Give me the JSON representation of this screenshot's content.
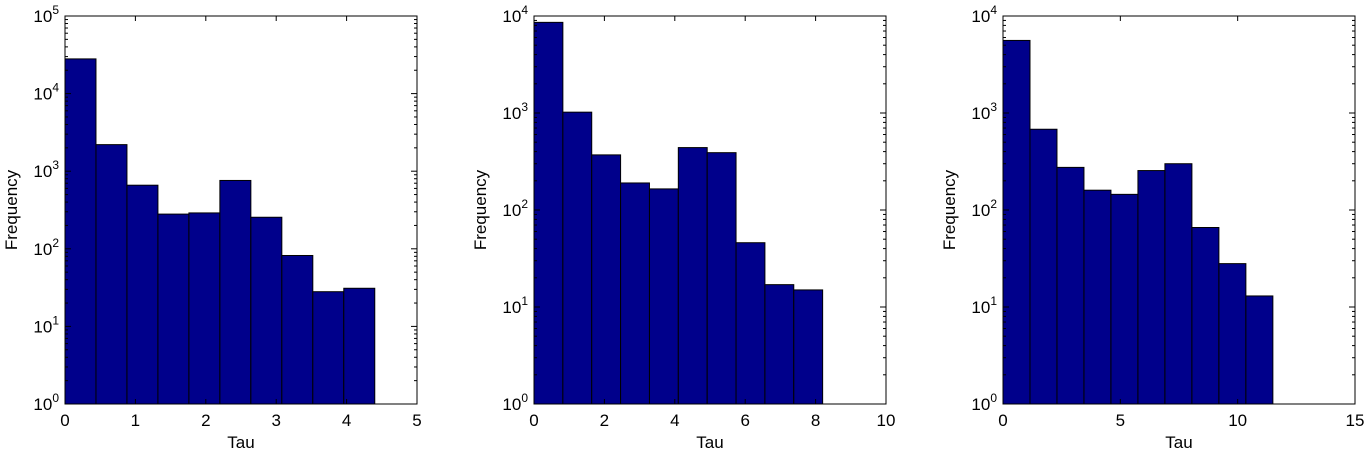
{
  "chart_data": [
    {
      "type": "bar",
      "subtype": "histogram",
      "xlabel": "Tau",
      "ylabel": "Frequency",
      "xlim": [
        0,
        5
      ],
      "xticks": [
        0,
        1,
        2,
        3,
        4,
        5
      ],
      "xtick_labels": [
        "0",
        "1",
        "2",
        "3",
        "4",
        "5"
      ],
      "yscale": "log",
      "ylim": [
        1,
        100000
      ],
      "ytick_exponents": [
        "0",
        "1",
        "2",
        "3",
        "4",
        "5"
      ],
      "ytick_base": "10",
      "bin_edges": [
        0,
        0.44,
        0.88,
        1.32,
        1.76,
        2.2,
        2.64,
        3.08,
        3.52,
        3.96,
        4.4
      ],
      "values": [
        28000,
        2200,
        660,
        280,
        290,
        760,
        255,
        82,
        28,
        31
      ],
      "color": "#00008B",
      "grid": false
    },
    {
      "type": "bar",
      "subtype": "histogram",
      "xlabel": "Tau",
      "ylabel": "Frequency",
      "xlim": [
        0,
        10
      ],
      "xticks": [
        0,
        2,
        4,
        6,
        8,
        10
      ],
      "xtick_labels": [
        "0",
        "2",
        "4",
        "6",
        "8",
        "10"
      ],
      "yscale": "log",
      "ylim": [
        1,
        10000
      ],
      "ytick_exponents": [
        "0",
        "1",
        "2",
        "3",
        "4"
      ],
      "ytick_base": "10",
      "bin_edges": [
        0,
        0.82,
        1.64,
        2.46,
        3.28,
        4.1,
        4.92,
        5.74,
        6.56,
        7.38,
        8.2
      ],
      "values": [
        8600,
        1020,
        370,
        190,
        165,
        440,
        390,
        46,
        17,
        15
      ],
      "color": "#00008B",
      "grid": false
    },
    {
      "type": "bar",
      "subtype": "histogram",
      "xlabel": "Tau",
      "ylabel": "Frequency",
      "xlim": [
        0,
        15
      ],
      "xticks": [
        0,
        5,
        10,
        15
      ],
      "xtick_labels": [
        "0",
        "5",
        "10",
        "15"
      ],
      "yscale": "log",
      "ylim": [
        1,
        10000
      ],
      "ytick_exponents": [
        "0",
        "1",
        "2",
        "3",
        "4"
      ],
      "ytick_base": "10",
      "bin_edges": [
        0,
        1.15,
        2.3,
        3.45,
        4.6,
        5.75,
        6.9,
        8.05,
        9.2,
        10.35,
        11.5
      ],
      "values": [
        5600,
        680,
        275,
        160,
        145,
        255,
        300,
        66,
        28,
        13
      ],
      "color": "#00008B",
      "grid": false
    }
  ]
}
